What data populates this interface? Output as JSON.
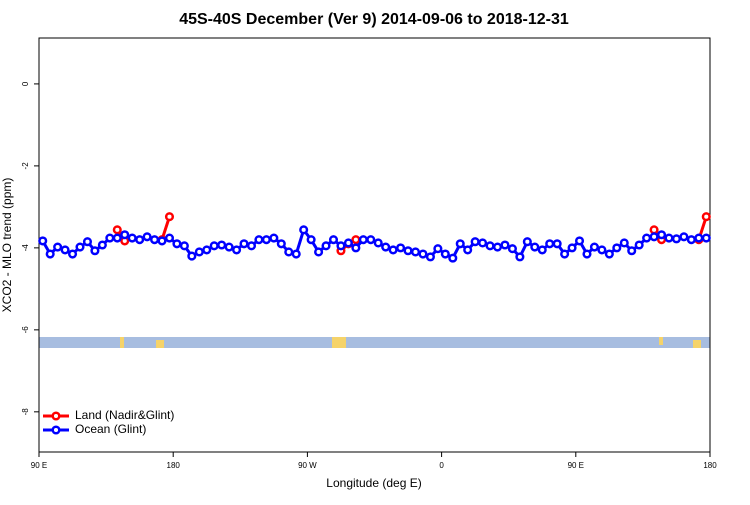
{
  "chart_data": {
    "type": "line",
    "title": "45S-40S December (Ver 9)   2014-09-06 to 2018-12-31",
    "x_label": "Longitude (deg E)",
    "y_label": "XCO2 - MLO trend (ppm)",
    "x": [
      92.5,
      97.5,
      102.5,
      107.5,
      112.5,
      117.5,
      122.5,
      127.5,
      132.5,
      137.5,
      142.5,
      147.5,
      152.5,
      157.5,
      162.5,
      167.5,
      172.5,
      177.5,
      182.5,
      187.5,
      192.5,
      197.5,
      202.5,
      207.5,
      212.5,
      217.5,
      222.5,
      227.5,
      232.5,
      237.5,
      242.5,
      247.5,
      252.5,
      257.5,
      262.5,
      267.5,
      272.5,
      277.5,
      282.5,
      287.5,
      292.5,
      297.5,
      302.5,
      307.5,
      312.5,
      317.5,
      322.5,
      327.5,
      332.5,
      337.5,
      342.5,
      347.5,
      352.5,
      357.5,
      362.5,
      367.5,
      372.5,
      377.5,
      382.5,
      387.5,
      392.5,
      397.5,
      402.5,
      407.5,
      412.5,
      417.5,
      422.5,
      427.5,
      432.5,
      437.5,
      442.5,
      447.5,
      452.5,
      457.5,
      462.5,
      467.5,
      472.5,
      477.5,
      482.5,
      487.5,
      492.5,
      497.5,
      502.5,
      507.5,
      512.5,
      517.5,
      522.5,
      527.5,
      532.5,
      537.5
    ],
    "series": [
      {
        "name": "Land (Nadir&Glint)",
        "color": "#ff0000",
        "values": [
          null,
          null,
          null,
          null,
          null,
          null,
          null,
          null,
          null,
          null,
          -3.56,
          -3.83,
          null,
          null,
          null,
          null,
          -3.8,
          -3.24,
          null,
          null,
          null,
          null,
          null,
          null,
          null,
          null,
          null,
          null,
          null,
          null,
          null,
          null,
          null,
          null,
          null,
          null,
          null,
          null,
          null,
          null,
          -4.07,
          -3.9,
          -3.8,
          null,
          null,
          null,
          null,
          null,
          null,
          null,
          null,
          null,
          null,
          null,
          null,
          null,
          null,
          null,
          null,
          null,
          null,
          null,
          null,
          null,
          null,
          null,
          null,
          null,
          null,
          null,
          null,
          null,
          null,
          null,
          null,
          null,
          null,
          null,
          null,
          null,
          null,
          null,
          -3.56,
          -3.8,
          null,
          null,
          null,
          null,
          -3.8,
          -3.24
        ]
      },
      {
        "name": "Ocean (Glint)",
        "color": "#0000ff",
        "values": [
          -3.83,
          -4.15,
          -3.98,
          -4.05,
          -4.15,
          -3.98,
          -3.85,
          -4.07,
          -3.93,
          -3.76,
          -3.76,
          -3.68,
          -3.76,
          -3.8,
          -3.73,
          -3.8,
          -3.83,
          -3.76,
          -3.9,
          -3.95,
          -4.2,
          -4.1,
          -4.05,
          -3.95,
          -3.93,
          -3.98,
          -4.05,
          -3.9,
          -3.95,
          -3.8,
          -3.8,
          -3.76,
          -3.9,
          -4.1,
          -4.15,
          -3.56,
          -3.8,
          -4.1,
          -3.95,
          -3.8,
          -3.95,
          -3.88,
          -4.0,
          -3.8,
          -3.8,
          -3.88,
          -3.98,
          -4.05,
          -4.0,
          -4.07,
          -4.1,
          -4.15,
          -4.22,
          -4.02,
          -4.15,
          -4.25,
          -3.9,
          -4.05,
          -3.85,
          -3.88,
          -3.95,
          -3.98,
          -3.93,
          -4.02,
          -4.22,
          -3.85,
          -3.98,
          -4.05,
          -3.9,
          -3.9,
          -4.15,
          -4.0,
          -3.83,
          -4.15,
          -3.98,
          -4.05,
          -4.15,
          -4.0,
          -3.88,
          -4.07,
          -3.93,
          -3.76,
          -3.73,
          -3.68,
          -3.76,
          -3.78,
          -3.73,
          -3.8,
          -3.76,
          -3.76
        ]
      }
    ],
    "xlim": [
      90,
      540
    ],
    "xticks": [
      {
        "value": 90,
        "label": "90 E"
      },
      180,
      {
        "value": 270,
        "label": "90 W"
      },
      {
        "value": 360,
        "label": "0"
      },
      {
        "value": 450,
        "label": "90 E"
      },
      {
        "value": 540,
        "label": "180"
      }
    ],
    "ylim": [
      -8.98,
      1.12
    ],
    "yticks": [
      0,
      -2,
      -4,
      -6,
      -8
    ],
    "legend": "bottomleft"
  }
}
